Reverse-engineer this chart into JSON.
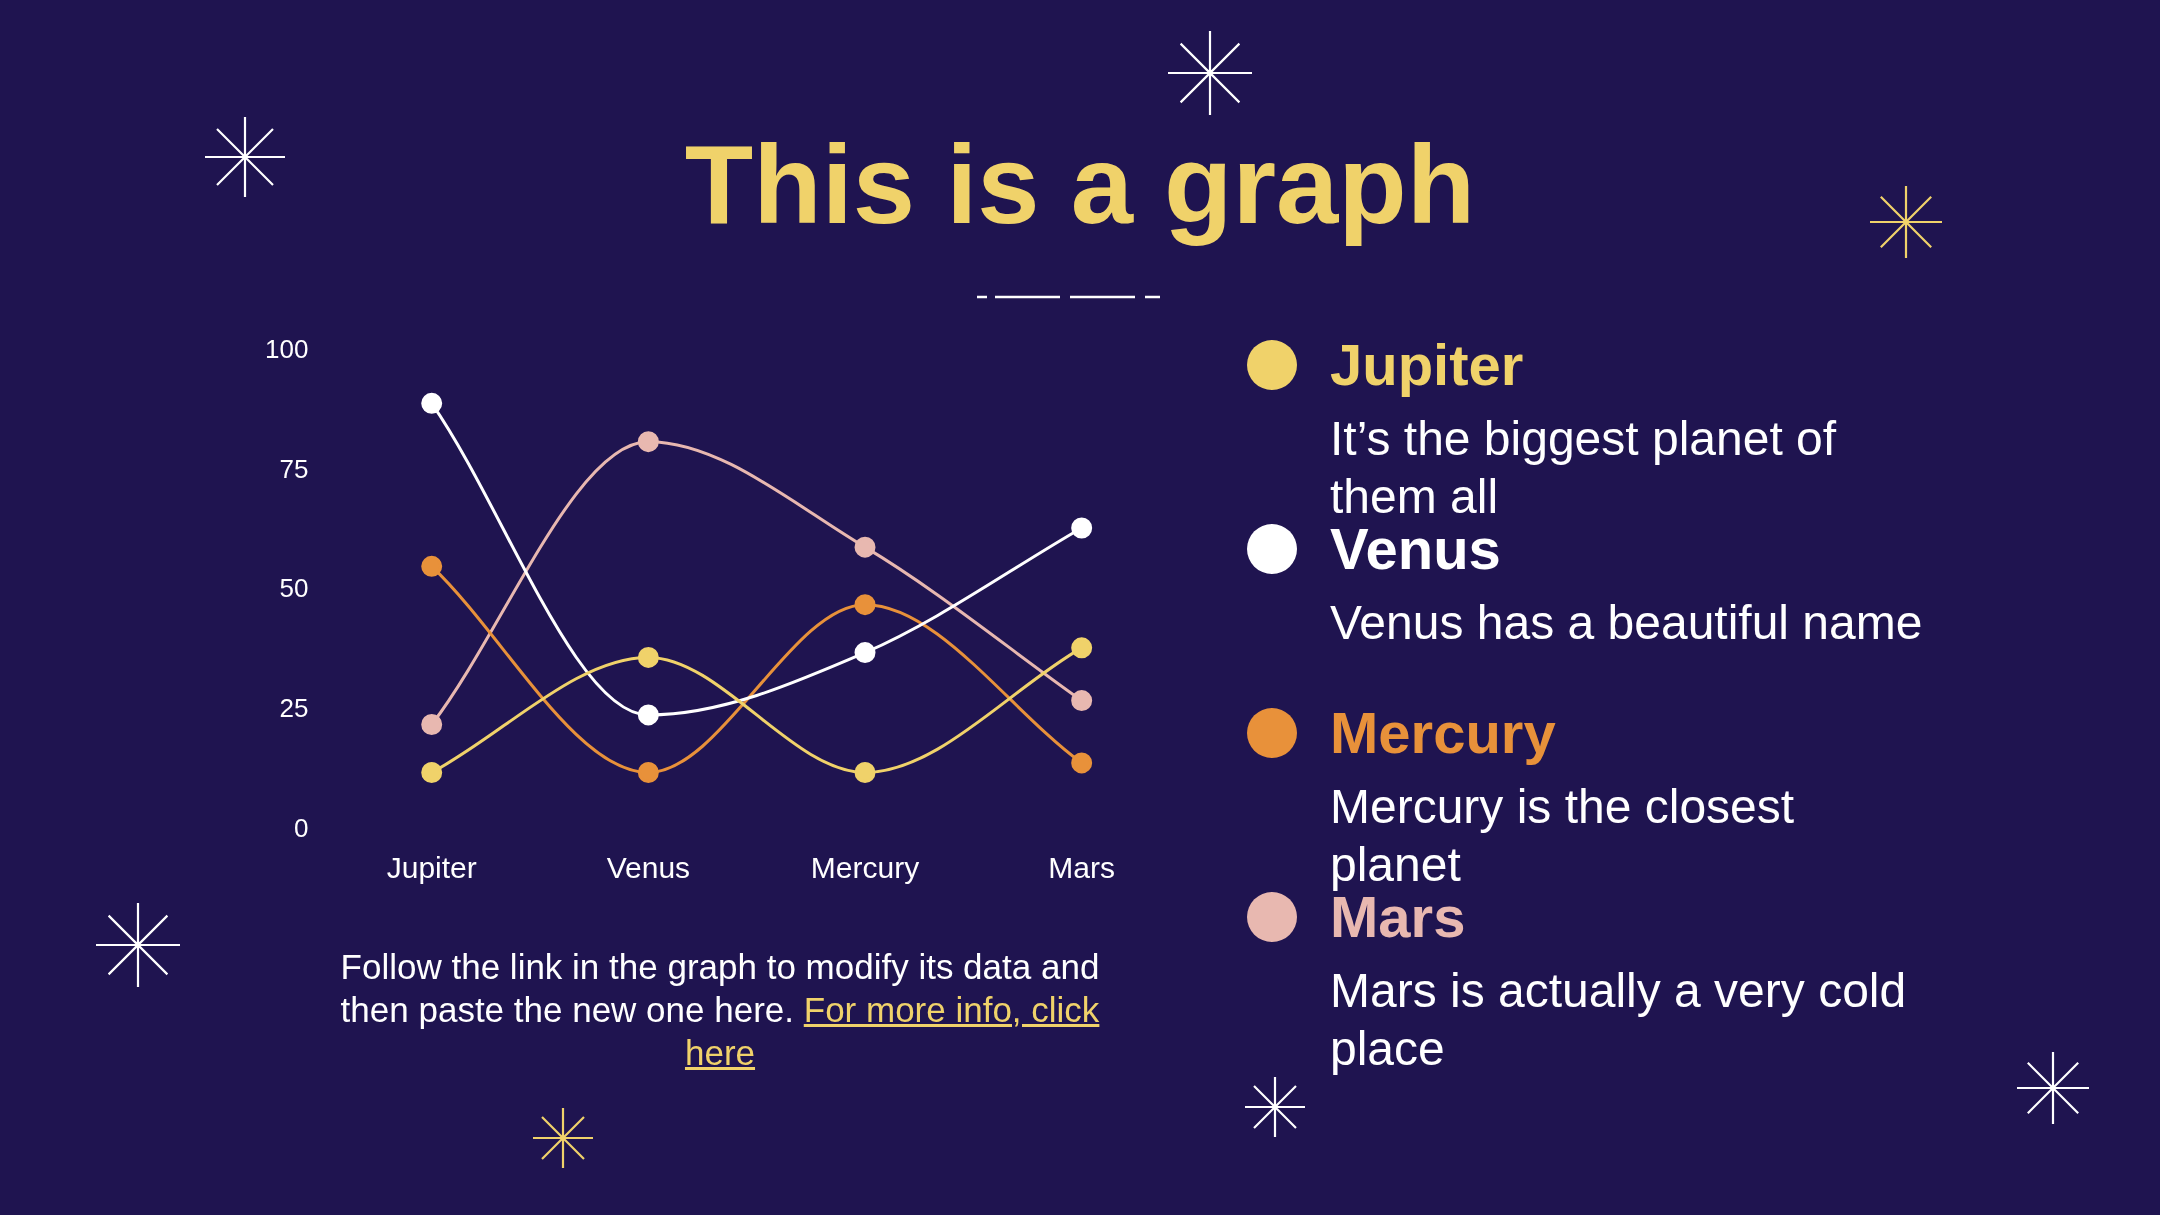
{
  "chart_data": {
    "type": "line",
    "title": "This is a graph",
    "categories": [
      "Jupiter",
      "Venus",
      "Mercury",
      "Mars"
    ],
    "series": [
      {
        "name": "Jupiter",
        "color": "#f0d26a",
        "values": [
          12,
          36,
          12,
          38
        ]
      },
      {
        "name": "Venus",
        "color": "#ffffff",
        "values": [
          89,
          24,
          37,
          63
        ]
      },
      {
        "name": "Mercury",
        "color": "#e8913a",
        "values": [
          55,
          12,
          47,
          14
        ]
      },
      {
        "name": "Mars",
        "color": "#e8b8b0",
        "values": [
          22,
          81,
          59,
          27
        ]
      }
    ],
    "ylim": [
      0,
      100
    ],
    "yticks": [
      0,
      25,
      50,
      75,
      100
    ],
    "grid": false,
    "legend": "right",
    "marker": "circle",
    "line_style": "solid",
    "annotations": [
      "It’s the biggest planet of them all",
      "Venus has a beautiful name",
      "Mercury is the closest planet",
      "Mars is actually a very cold place",
      "Follow the link in the graph to modify its data and then paste the new one here.",
      "For more info, click here"
    ]
  }
}
